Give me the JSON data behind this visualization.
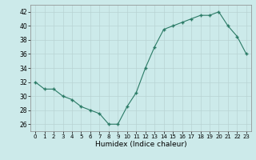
{
  "x": [
    0,
    1,
    2,
    3,
    4,
    5,
    6,
    7,
    8,
    9,
    10,
    11,
    12,
    13,
    14,
    15,
    16,
    17,
    18,
    19,
    20,
    21,
    22,
    23
  ],
  "y": [
    32,
    31,
    31,
    30,
    29.5,
    28.5,
    28,
    27.5,
    26,
    26,
    28.5,
    30.5,
    34,
    37,
    39.5,
    40,
    40.5,
    41,
    41.5,
    41.5,
    42,
    40,
    38.5,
    36
  ],
  "line_color": "#2a7a65",
  "marker": "+",
  "marker_size": 3,
  "background_color": "#cceaea",
  "grid_color": "#b8d4d4",
  "xlabel": "Humidex (Indice chaleur)",
  "xlim": [
    -0.5,
    23.5
  ],
  "ylim": [
    25,
    43
  ],
  "yticks": [
    26,
    28,
    30,
    32,
    34,
    36,
    38,
    40,
    42
  ],
  "xticks": [
    0,
    1,
    2,
    3,
    4,
    5,
    6,
    7,
    8,
    9,
    10,
    11,
    12,
    13,
    14,
    15,
    16,
    17,
    18,
    19,
    20,
    21,
    22,
    23
  ]
}
